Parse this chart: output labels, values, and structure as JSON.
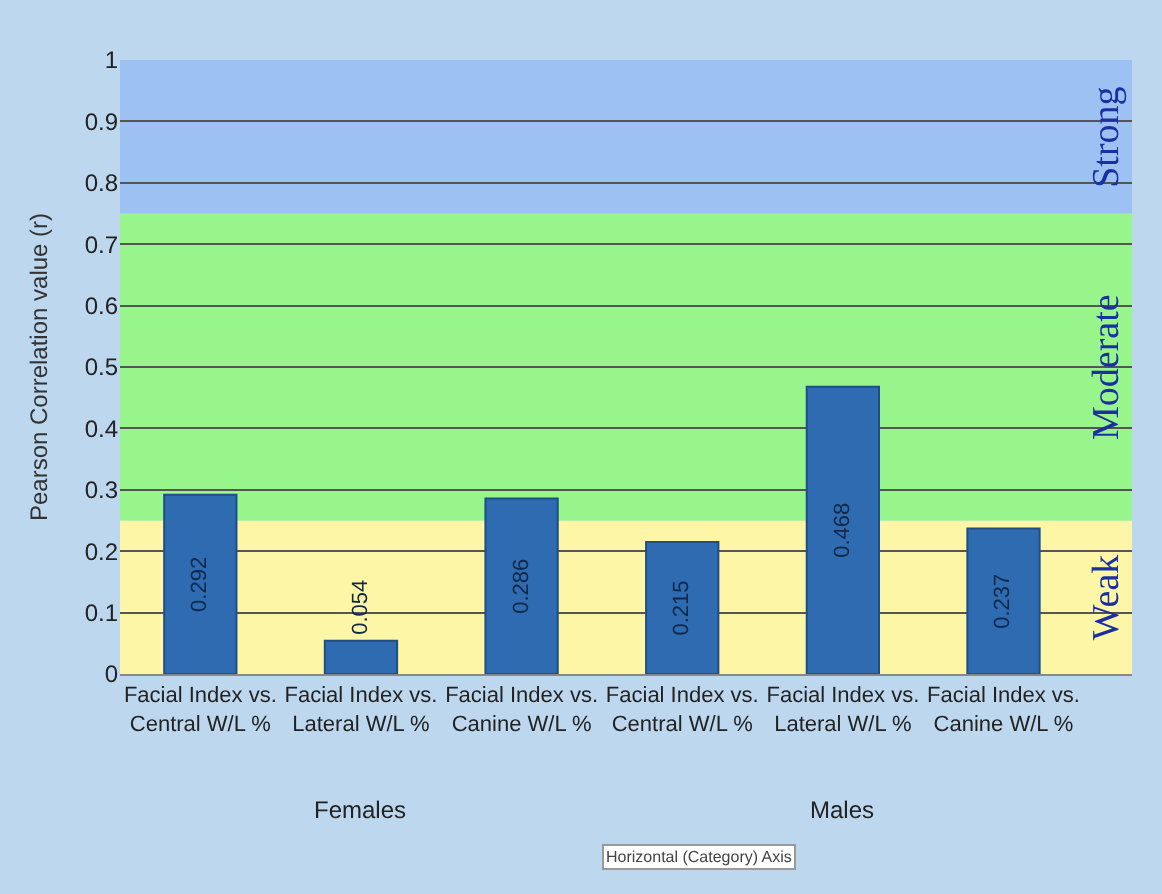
{
  "chart_data": {
    "type": "bar",
    "ylabel": "Pearson Correlation value (r)",
    "categories": [
      "Facial Index vs. Central W/L %",
      "Facial Index vs. Lateral W/L %",
      "Facial Index vs. Canine W/L %",
      "Facial Index vs. Central W/L %",
      "Facial Index vs. Lateral W/L %",
      "Facial Index vs. Canine W/L %"
    ],
    "values": [
      0.292,
      0.054,
      0.286,
      0.215,
      0.468,
      0.237
    ],
    "color": "#2e6bb0",
    "data_labels": true,
    "ylim": [
      0,
      1
    ],
    "yticks": [
      0,
      0.1,
      0.2,
      0.3,
      0.4,
      0.5,
      0.6,
      0.7,
      0.8,
      0.9,
      1
    ],
    "grid": "y",
    "bands": [
      {
        "axis": "y",
        "from": 0,
        "to": 0.25,
        "label": "Weak",
        "color": "#fdf6a6"
      },
      {
        "axis": "y",
        "from": 0.25,
        "to": 0.75,
        "label": "Moderate",
        "color": "#98f58c"
      },
      {
        "axis": "y",
        "from": 0.75,
        "to": 1,
        "label": "Strong",
        "color": "#9ec1f4"
      }
    ],
    "annotations": [
      "Females",
      "Males",
      "Horizontal (Category) Axis"
    ]
  }
}
